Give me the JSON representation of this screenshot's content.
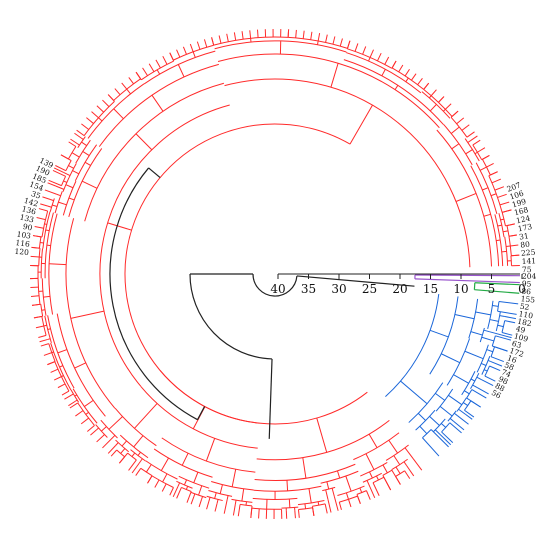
{
  "colors": {
    "main_cluster": "#ff2a2a",
    "blue_cluster": "#1a66d9",
    "green_cluster": "#22aa44",
    "purple_cluster": "#9955cc",
    "root_links": "#222222",
    "background": "#ffffff"
  },
  "scale": {
    "ticks": [
      "40",
      "35",
      "30",
      "25",
      "20",
      "15",
      "10",
      "5",
      "0"
    ]
  },
  "visible_leaf_labels": [
    "204",
    "95",
    "86",
    "155",
    "52",
    "110",
    "182",
    "49",
    "109",
    "63",
    "172",
    "16",
    "58",
    "74",
    "98",
    "88",
    "56",
    "75",
    "141",
    "225",
    "80",
    "31",
    "173",
    "124",
    "168",
    "199",
    "106",
    "207",
    "120",
    "116",
    "103",
    "90",
    "133",
    "136",
    "142",
    "35",
    "154",
    "185",
    "190",
    "139"
  ]
}
